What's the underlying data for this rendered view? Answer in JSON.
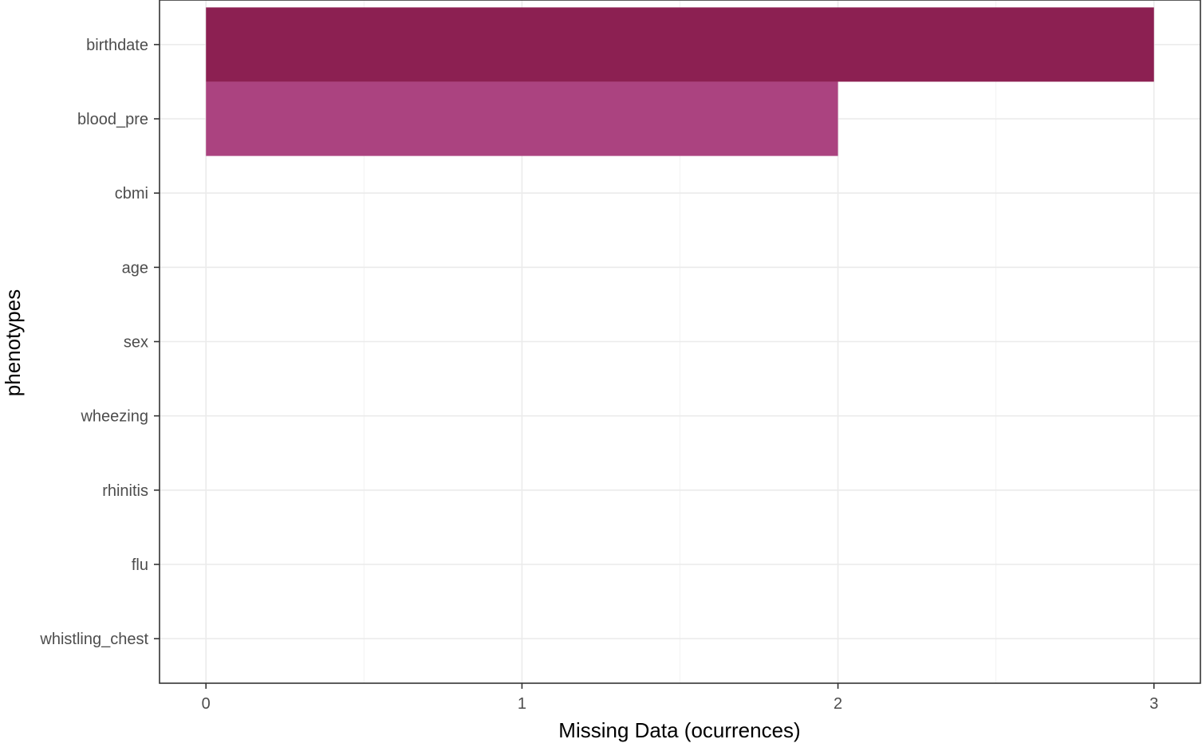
{
  "chart_data": {
    "type": "bar",
    "orientation": "horizontal",
    "categories": [
      "birthdate",
      "blood_pre",
      "cbmi",
      "age",
      "sex",
      "wheezing",
      "rhinitis",
      "flu",
      "whistling_chest"
    ],
    "values": [
      3,
      2,
      0,
      0,
      0,
      0,
      0,
      0,
      0
    ],
    "bar_colors": [
      "#8c2052",
      "#ab4380",
      "#ab4380",
      "#ab4380",
      "#ab4380",
      "#ab4380",
      "#ab4380",
      "#ab4380",
      "#ab4380"
    ],
    "xlabel": "Missing Data (ocurrences)",
    "ylabel": "phenotypes",
    "x_ticks": [
      "0",
      "1",
      "2",
      "3"
    ],
    "xlim": [
      -0.147,
      3.147
    ],
    "grid": true,
    "legend": "none"
  }
}
